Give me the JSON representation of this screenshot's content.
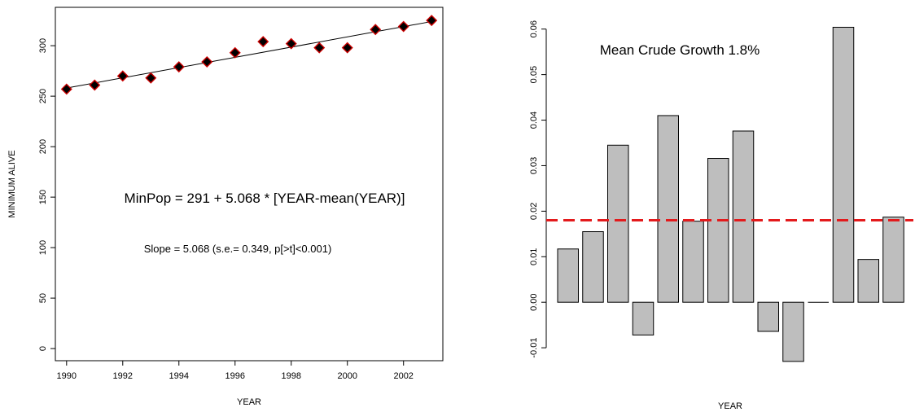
{
  "chart_data": [
    {
      "type": "scatter",
      "title": "",
      "xlabel": "YEAR",
      "ylabel": "MINIMUM ALIVE",
      "xlim": [
        1989.6,
        2003.4
      ],
      "ylim": [
        -12,
        338
      ],
      "xticks": [
        1990,
        1992,
        1994,
        1996,
        1998,
        2000,
        2002
      ],
      "yticks": [
        0,
        50,
        100,
        150,
        200,
        250,
        300
      ],
      "grid": false,
      "x": [
        1990,
        1991,
        1992,
        1993,
        1994,
        1995,
        1996,
        1997,
        1998,
        1999,
        2000,
        2001,
        2002,
        2003
      ],
      "y": [
        257,
        261,
        270,
        268,
        279,
        284,
        293,
        304,
        302,
        298,
        298,
        316,
        319,
        325
      ],
      "fit_line": {
        "intercept_at_mean": 291,
        "slope": 5.068,
        "x_mean": 1996.5
      },
      "annotations": [
        "MinPop = 291 + 5.068 * [YEAR-mean(YEAR)]",
        "Slope = 5.068 (s.e.= 0.349, p[>t]<0.001)"
      ],
      "marker_fill": "#000000",
      "marker_edge": "#cc0000"
    },
    {
      "type": "bar",
      "title": "",
      "xlabel": "YEAR",
      "ylabel": "",
      "ylim": [
        -0.0132,
        0.0612
      ],
      "yticks": [
        -0.01,
        0.0,
        0.01,
        0.02,
        0.03,
        0.04,
        0.05,
        0.06
      ],
      "ytick_labels": [
        "-0.01",
        "0.00",
        "0.01",
        "0.02",
        "0.03",
        "0.04",
        "0.05",
        "0.06"
      ],
      "values": [
        0.0117,
        0.0155,
        0.0345,
        -0.0072,
        0.041,
        0.0178,
        0.0316,
        0.0376,
        -0.0064,
        -0.013,
        0.0,
        0.0604,
        0.0094,
        0.0187
      ],
      "bar_color": "#bebebe",
      "mean_line": {
        "value": 0.018,
        "color": "#e31a1c",
        "style": "dashed"
      },
      "annotation": "Mean Crude Growth 1.8%"
    }
  ]
}
